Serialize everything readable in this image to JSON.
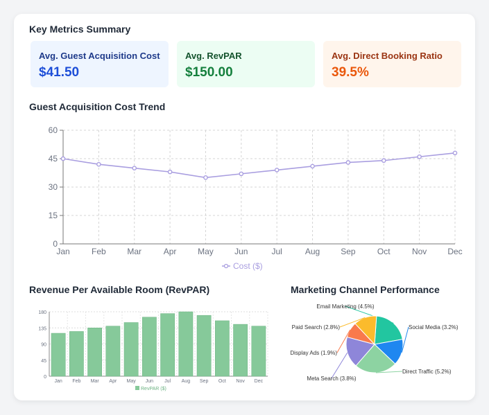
{
  "summary": {
    "title": "Key Metrics Summary",
    "metrics": [
      {
        "label": "Avg. Guest Acquisition Cost",
        "value": "$41.50"
      },
      {
        "label": "Avg. RevPAR",
        "value": "$150.00"
      },
      {
        "label": "Avg. Direct Booking Ratio",
        "value": "39.5%"
      }
    ]
  },
  "colors": {
    "line": "#a99ee0",
    "bar": "#86c99a",
    "bar_stroke": "#6db383"
  },
  "chart_data": [
    {
      "type": "line",
      "title": "Guest Acquisition Cost Trend",
      "categories": [
        "Jan",
        "Feb",
        "Mar",
        "Apr",
        "May",
        "Jun",
        "Jul",
        "Aug",
        "Sep",
        "Oct",
        "Nov",
        "Dec"
      ],
      "series": [
        {
          "name": "Cost ($)",
          "values": [
            45,
            42,
            40,
            38,
            35,
            37,
            39,
            41,
            43,
            44,
            46,
            48
          ]
        }
      ],
      "ylim": [
        0,
        60
      ],
      "yticks": [
        0,
        15,
        30,
        45,
        60
      ],
      "grid": true,
      "legend": "bottom"
    },
    {
      "type": "bar",
      "title": "Revenue Per Available Room (RevPAR)",
      "categories": [
        "Jan",
        "Feb",
        "Mar",
        "Apr",
        "May",
        "Jun",
        "Jul",
        "Aug",
        "Sep",
        "Oct",
        "Nov",
        "Dec"
      ],
      "series": [
        {
          "name": "RevPAR ($)",
          "values": [
            120,
            125,
            135,
            140,
            150,
            165,
            175,
            180,
            170,
            155,
            145,
            140
          ]
        }
      ],
      "ylim": [
        0,
        180
      ],
      "yticks": [
        0,
        45,
        90,
        135,
        180
      ],
      "grid": true,
      "legend": "bottom"
    },
    {
      "type": "pie",
      "title": "Marketing Channel Performance",
      "slices": [
        {
          "label": "Email Marketing (4.5%)",
          "value": 4.5,
          "color": "#22c6a0"
        },
        {
          "label": "Social Media (3.2%)",
          "value": 3.2,
          "color": "#1f87f0"
        },
        {
          "label": "Direct Traffic (5.2%)",
          "value": 5.2,
          "color": "#8dd3a2"
        },
        {
          "label": "Meta Search (3.8%)",
          "value": 3.8,
          "color": "#8e86d9"
        },
        {
          "label": "Display Ads (1.9%)",
          "value": 1.9,
          "color": "#f97a4c"
        },
        {
          "label": "Paid Search (2.8%)",
          "value": 2.8,
          "color": "#fbbb2c"
        }
      ]
    }
  ]
}
